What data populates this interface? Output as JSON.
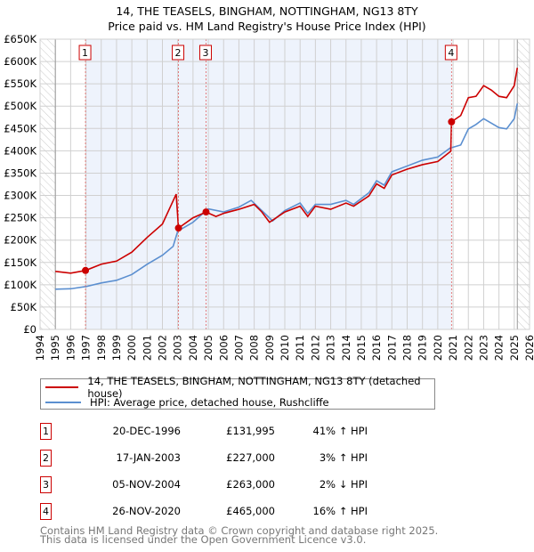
{
  "title": "14, THE TEASELS, BINGHAM, NOTTINGHAM, NG13 8TY",
  "subtitle": "Price paid vs. HM Land Registry's House Price Index (HPI)",
  "colors": {
    "property": "#cc0000",
    "hpi": "#5b8fd0",
    "shade": "#eef3fc"
  },
  "chart_data": {
    "type": "line",
    "title": "14, THE TEASELS, BINGHAM, NOTTINGHAM, NG13 8TY",
    "xlim": [
      1994,
      2026
    ],
    "ylim": [
      0,
      650000
    ],
    "x_ticks": [
      "1994",
      "1995",
      "1996",
      "1997",
      "1998",
      "1999",
      "2000",
      "2001",
      "2002",
      "2003",
      "2004",
      "2005",
      "2006",
      "2007",
      "2008",
      "2009",
      "2010",
      "2011",
      "2012",
      "2013",
      "2014",
      "2015",
      "2016",
      "2017",
      "2018",
      "2019",
      "2020",
      "2021",
      "2022",
      "2023",
      "2024",
      "2025",
      "2026"
    ],
    "y_ticks": [
      {
        "v": 0,
        "label": "£0"
      },
      {
        "v": 50000,
        "label": "£50K"
      },
      {
        "v": 100000,
        "label": "£100K"
      },
      {
        "v": 150000,
        "label": "£150K"
      },
      {
        "v": 200000,
        "label": "£200K"
      },
      {
        "v": 250000,
        "label": "£250K"
      },
      {
        "v": 300000,
        "label": "£300K"
      },
      {
        "v": 350000,
        "label": "£350K"
      },
      {
        "v": 400000,
        "label": "£400K"
      },
      {
        "v": 450000,
        "label": "£450K"
      },
      {
        "v": 500000,
        "label": "£500K"
      },
      {
        "v": 550000,
        "label": "£550K"
      },
      {
        "v": 600000,
        "label": "£600K"
      },
      {
        "v": 650000,
        "label": "£650K"
      }
    ],
    "data_range": [
      1995.0,
      2025.2
    ],
    "series": [
      {
        "name": "14, THE TEASELS, BINGHAM, NOTTINGHAM, NG13 8TY (detached house)",
        "x": [
          1995,
          1996,
          1996.97,
          1998,
          1999,
          2000,
          2001,
          2002,
          2002.9,
          2003.05,
          2004,
          2004.85,
          2005.5,
          2006,
          2007,
          2008,
          2008.5,
          2009,
          2010,
          2011,
          2011.5,
          2012,
          2013,
          2014,
          2014.5,
          2015.5,
          2016,
          2016.5,
          2017,
          2018,
          2019,
          2020,
          2020.85,
          2020.9,
          2021.5,
          2022,
          2022.5,
          2023,
          2023.5,
          2024,
          2024.5,
          2025,
          2025.2
        ],
        "y": [
          130000,
          126000,
          131995,
          146000,
          153000,
          173000,
          206000,
          236000,
          303000,
          227000,
          250000,
          263000,
          253000,
          260000,
          269000,
          280000,
          263000,
          240000,
          263000,
          276000,
          253000,
          276000,
          269000,
          283000,
          276000,
          299000,
          326000,
          316000,
          346000,
          359000,
          369000,
          376000,
          399000,
          465000,
          479000,
          519000,
          522000,
          546000,
          536000,
          522000,
          519000,
          546000,
          586000
        ]
      },
      {
        "name": "HPI: Average price, detached house, Rushcliffe",
        "x": [
          1995,
          1996,
          1997,
          1998,
          1999,
          2000,
          2001,
          2002,
          2002.7,
          2003,
          2004,
          2005,
          2006,
          2007,
          2007.8,
          2008.5,
          2009.2,
          2010,
          2011,
          2011.5,
          2012,
          2013,
          2014,
          2014.5,
          2015.5,
          2016,
          2016.5,
          2017,
          2018,
          2019,
          2020,
          2020.8,
          2021.5,
          2022,
          2022.5,
          2023,
          2023.5,
          2024,
          2024.5,
          2025,
          2025.2
        ],
        "y": [
          90000,
          91000,
          96000,
          104000,
          110000,
          123000,
          146000,
          166000,
          186000,
          220000,
          240000,
          270000,
          263000,
          274000,
          289000,
          266000,
          243000,
          266000,
          283000,
          260000,
          280000,
          280000,
          289000,
          280000,
          306000,
          333000,
          323000,
          353000,
          366000,
          379000,
          386000,
          406000,
          413000,
          449000,
          459000,
          472000,
          462000,
          452000,
          449000,
          472000,
          506000
        ]
      }
    ],
    "sales": [
      {
        "n": "1",
        "x": 1996.97,
        "y": 131995
      },
      {
        "n": "2",
        "x": 2003.05,
        "y": 227000
      },
      {
        "n": "3",
        "x": 2004.85,
        "y": 263000
      },
      {
        "n": "4",
        "x": 2020.9,
        "y": 465000
      }
    ],
    "legend_position": "below"
  },
  "legend": [
    "14, THE TEASELS, BINGHAM, NOTTINGHAM, NG13 8TY (detached house)",
    "HPI: Average price, detached house, Rushcliffe"
  ],
  "table": [
    {
      "n": "1",
      "date": "20-DEC-1996",
      "price": "£131,995",
      "hpi": "41% ↑ HPI"
    },
    {
      "n": "2",
      "date": "17-JAN-2003",
      "price": "£227,000",
      "hpi": "3% ↑ HPI"
    },
    {
      "n": "3",
      "date": "05-NOV-2004",
      "price": "£263,000",
      "hpi": "2% ↓ HPI"
    },
    {
      "n": "4",
      "date": "26-NOV-2020",
      "price": "£465,000",
      "hpi": "16% ↑ HPI"
    }
  ],
  "footer": [
    "Contains HM Land Registry data © Crown copyright and database right 2025.",
    "This data is licensed under the Open Government Licence v3.0."
  ]
}
